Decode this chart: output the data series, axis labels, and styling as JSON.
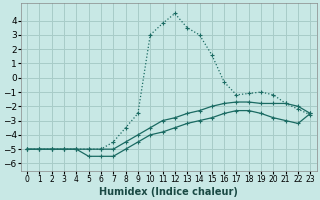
{
  "xlabel": "Humidex (Indice chaleur)",
  "background_color": "#c8e8e5",
  "grid_color": "#a8ccc8",
  "line_color": "#1a6a62",
  "xlim": [
    -0.5,
    23.5
  ],
  "ylim": [
    -6.5,
    5.2
  ],
  "x_ticks": [
    0,
    1,
    2,
    3,
    4,
    5,
    6,
    7,
    8,
    9,
    10,
    11,
    12,
    13,
    14,
    15,
    16,
    17,
    18,
    19,
    20,
    21,
    22,
    23
  ],
  "y_ticks": [
    -6,
    -5,
    -4,
    -3,
    -2,
    -1,
    0,
    1,
    2,
    3,
    4
  ],
  "curve_dotted_x": [
    0,
    1,
    2,
    3,
    4,
    5,
    6,
    7,
    8,
    9,
    10,
    11,
    12,
    13,
    14,
    15,
    16,
    17,
    18,
    19,
    20,
    21,
    22,
    23
  ],
  "curve_dotted_y": [
    -5,
    -5,
    -5,
    -5,
    -5,
    -5,
    -5,
    -4.5,
    -3.5,
    -2.5,
    3.0,
    3.8,
    4.5,
    3.5,
    3.0,
    1.6,
    -0.3,
    -1.2,
    -1.1,
    -1.0,
    -1.2,
    -1.8,
    -2.2,
    -2.6
  ],
  "curve_solid_top_x": [
    0,
    1,
    2,
    3,
    4,
    5,
    6,
    7,
    8,
    9,
    10,
    11,
    12,
    13,
    14,
    15,
    16,
    17,
    18,
    19,
    20,
    21,
    22,
    23
  ],
  "curve_solid_top_y": [
    -5,
    -5,
    -5,
    -5,
    -5,
    -5,
    -5,
    -5,
    -4.5,
    -4.0,
    -3.5,
    -3.0,
    -2.8,
    -2.5,
    -2.3,
    -2.0,
    -1.8,
    -1.7,
    -1.7,
    -1.8,
    -1.8,
    -1.8,
    -2.0,
    -2.5
  ],
  "curve_solid_bot_x": [
    0,
    1,
    2,
    3,
    4,
    5,
    6,
    7,
    8,
    9,
    10,
    11,
    12,
    13,
    14,
    15,
    16,
    17,
    18,
    19,
    20,
    21,
    22,
    23
  ],
  "curve_solid_bot_y": [
    -5,
    -5,
    -5,
    -5,
    -5,
    -5.5,
    -5.5,
    -5.5,
    -5.0,
    -4.5,
    -4.0,
    -3.8,
    -3.5,
    -3.2,
    -3.0,
    -2.8,
    -2.5,
    -2.3,
    -2.3,
    -2.5,
    -2.8,
    -3.0,
    -3.2,
    -2.5
  ]
}
